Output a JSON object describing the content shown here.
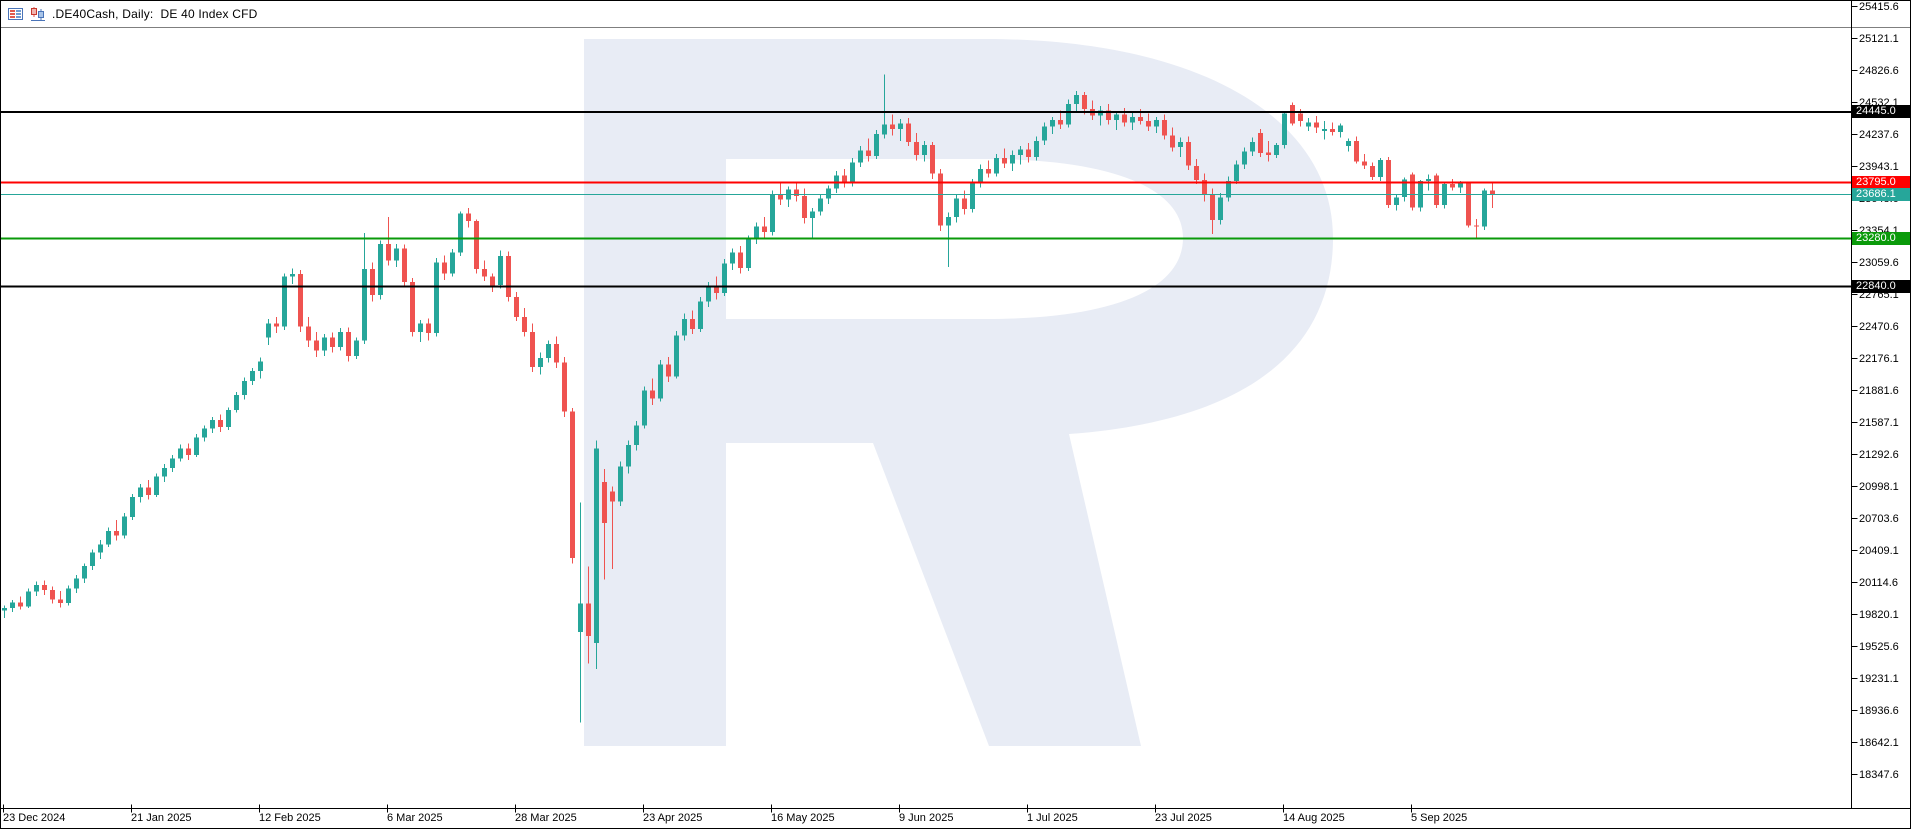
{
  "caption": {
    "title": ".DE40Cash, Daily:  DE 40 Index CFD",
    "icons": [
      "market-watch-icon",
      "candlestick-chart-icon"
    ]
  },
  "colors": {
    "background": "#ffffff",
    "frame": "#000000",
    "caption_separator": "#7f7f7f",
    "bull_candle": "#26a69a",
    "bear_candle": "#ef5350",
    "watermark": "#e8ecf5",
    "axis_text": "#000000",
    "badge_text": "#ffffff"
  },
  "chart_data": {
    "type": "candlestick",
    "symbol": ".DE40Cash",
    "timeframe": "Daily",
    "description": "DE 40 Index CFD",
    "price_axis": {
      "max": 25415.6,
      "step": 294.5,
      "ticks": [
        25415.6,
        25121.1,
        24826.6,
        24532.1,
        24237.6,
        23943.1,
        23648.6,
        23354.1,
        23059.6,
        22765.1,
        22470.6,
        22176.1,
        21881.6,
        21587.1,
        21292.6,
        20998.1,
        20703.6,
        20409.1,
        20114.6,
        19820.1,
        19525.6,
        19231.1,
        18936.6,
        18642.1,
        18347.6
      ]
    },
    "time_axis": {
      "labels": [
        "23 Dec 2024",
        "21 Jan 2025",
        "12 Feb 2025",
        "6 Mar 2025",
        "28 Mar 2025",
        "23 Apr 2025",
        "16 May 2025",
        "9 Jun 2025",
        "1 Jul 2025",
        "23 Jul 2025",
        "14 Aug 2025",
        "5 Sep 2025"
      ]
    },
    "levels": [
      {
        "name": "resistance-upper",
        "price": 24445.0,
        "label": "24445.0",
        "color": "#000000",
        "width": 2
      },
      {
        "name": "resistance-red",
        "price": 23795.0,
        "label": "23795.0",
        "color": "#ff0000",
        "width": 2
      },
      {
        "name": "current-price",
        "price": 23686.1,
        "label": "23686.1",
        "color": "#26a69a",
        "width": 1
      },
      {
        "name": "support-green",
        "price": 23280.0,
        "label": "23280.0",
        "color": "#0a9a0a",
        "width": 2
      },
      {
        "name": "support-lower",
        "price": 22840.0,
        "label": "22840.0",
        "color": "#000000",
        "width": 2
      }
    ],
    "current_price": 23686.1,
    "legend_position": "none",
    "grid": false,
    "bars": [
      [
        19855,
        19905,
        19790,
        19880
      ],
      [
        19880,
        19955,
        19845,
        19930
      ],
      [
        19930,
        19985,
        19865,
        19895
      ],
      [
        19895,
        20060,
        19880,
        20030
      ],
      [
        20030,
        20125,
        19990,
        20090
      ],
      [
        20090,
        20135,
        20000,
        20045
      ],
      [
        20045,
        20080,
        19920,
        19960
      ],
      [
        19960,
        20035,
        19885,
        19925
      ],
      [
        19925,
        20085,
        19905,
        20060
      ],
      [
        20060,
        20185,
        20020,
        20150
      ],
      [
        20150,
        20290,
        20110,
        20265
      ],
      [
        20265,
        20420,
        20230,
        20390
      ],
      [
        20390,
        20505,
        20330,
        20465
      ],
      [
        20465,
        20620,
        20440,
        20590
      ],
      [
        20590,
        20690,
        20500,
        20545
      ],
      [
        20545,
        20755,
        20520,
        20720
      ],
      [
        20720,
        20930,
        20690,
        20900
      ],
      [
        20900,
        21020,
        20850,
        20990
      ],
      [
        20990,
        21060,
        20880,
        20920
      ],
      [
        20920,
        21120,
        20900,
        21090
      ],
      [
        21090,
        21205,
        21040,
        21170
      ],
      [
        21170,
        21290,
        21130,
        21255
      ],
      [
        21255,
        21385,
        21230,
        21350
      ],
      [
        21350,
        21395,
        21240,
        21290
      ],
      [
        21290,
        21480,
        21270,
        21450
      ],
      [
        21450,
        21560,
        21410,
        21530
      ],
      [
        21530,
        21640,
        21490,
        21610
      ],
      [
        21610,
        21660,
        21500,
        21545
      ],
      [
        21545,
        21725,
        21520,
        21700
      ],
      [
        21700,
        21870,
        21680,
        21840
      ],
      [
        21840,
        22000,
        21800,
        21970
      ],
      [
        21970,
        22090,
        21930,
        22060
      ],
      [
        22060,
        22185,
        21990,
        22150
      ],
      [
        22370,
        22540,
        22300,
        22500
      ],
      [
        22500,
        22560,
        22410,
        22470
      ],
      [
        22470,
        22960,
        22440,
        22930
      ],
      [
        22930,
        23005,
        22860,
        22955
      ],
      [
        22955,
        22990,
        22420,
        22470
      ],
      [
        22470,
        22560,
        22280,
        22340
      ],
      [
        22340,
        22420,
        22190,
        22250
      ],
      [
        22250,
        22400,
        22200,
        22370
      ],
      [
        22370,
        22415,
        22230,
        22280
      ],
      [
        22280,
        22455,
        22250,
        22420
      ],
      [
        22420,
        22460,
        22150,
        22200
      ],
      [
        22200,
        22370,
        22170,
        22340
      ],
      [
        22340,
        23330,
        22310,
        23000
      ],
      [
        23000,
        23060,
        22700,
        22760
      ],
      [
        22760,
        23260,
        22720,
        23230
      ],
      [
        23230,
        23480,
        23030,
        23080
      ],
      [
        23080,
        23230,
        23020,
        23190
      ],
      [
        23190,
        23225,
        22830,
        22880
      ],
      [
        22880,
        22915,
        22380,
        22420
      ],
      [
        22420,
        22530,
        22330,
        22500
      ],
      [
        22500,
        22545,
        22340,
        22410
      ],
      [
        22410,
        23100,
        22380,
        23060
      ],
      [
        23060,
        23125,
        22900,
        22960
      ],
      [
        22960,
        23185,
        22930,
        23150
      ],
      [
        23150,
        23530,
        23120,
        23510
      ],
      [
        23510,
        23560,
        23380,
        23440
      ],
      [
        23440,
        23455,
        22960,
        23000
      ],
      [
        23000,
        23080,
        22890,
        22930
      ],
      [
        22930,
        22960,
        22790,
        22850
      ],
      [
        22850,
        23170,
        22820,
        23120
      ],
      [
        23120,
        23160,
        22700,
        22740
      ],
      [
        22740,
        22790,
        22520,
        22560
      ],
      [
        22560,
        22640,
        22380,
        22420
      ],
      [
        22420,
        22500,
        22050,
        22100
      ],
      [
        22100,
        22230,
        22030,
        22180
      ],
      [
        22180,
        22340,
        22140,
        22310
      ],
      [
        22310,
        22380,
        22090,
        22140
      ],
      [
        22140,
        22190,
        21640,
        21690
      ],
      [
        21690,
        21720,
        20290,
        20340
      ],
      [
        19660,
        20850,
        18826,
        19920
      ],
      [
        19920,
        20260,
        19370,
        19620
      ],
      [
        19560,
        21420,
        19320,
        21350
      ],
      [
        21040,
        21160,
        20140,
        20660
      ],
      [
        20950,
        21000,
        20240,
        20860
      ],
      [
        20860,
        21230,
        20820,
        21180
      ],
      [
        21180,
        21420,
        21120,
        21380
      ],
      [
        21380,
        21600,
        21330,
        21560
      ],
      [
        21560,
        21920,
        21530,
        21880
      ],
      [
        21880,
        21990,
        21750,
        21810
      ],
      [
        21810,
        22160,
        21780,
        22120
      ],
      [
        22120,
        22190,
        21960,
        22010
      ],
      [
        22010,
        22430,
        21990,
        22390
      ],
      [
        22390,
        22590,
        22340,
        22540
      ],
      [
        22540,
        22620,
        22400,
        22450
      ],
      [
        22450,
        22740,
        22420,
        22700
      ],
      [
        22700,
        22880,
        22650,
        22840
      ],
      [
        22840,
        22930,
        22720,
        22780
      ],
      [
        22780,
        23090,
        22750,
        23050
      ],
      [
        23050,
        23190,
        22990,
        23150
      ],
      [
        23150,
        23210,
        22960,
        23010
      ],
      [
        23010,
        23310,
        22980,
        23270
      ],
      [
        23270,
        23430,
        23230,
        23390
      ],
      [
        23390,
        23480,
        23290,
        23340
      ],
      [
        23340,
        23720,
        23310,
        23690
      ],
      [
        23690,
        23790,
        23590,
        23640
      ],
      [
        23640,
        23760,
        23570,
        23730
      ],
      [
        23730,
        23800,
        23620,
        23670
      ],
      [
        23670,
        23740,
        23420,
        23470
      ],
      [
        23470,
        23560,
        23290,
        23530
      ],
      [
        23530,
        23680,
        23490,
        23650
      ],
      [
        23650,
        23770,
        23600,
        23740
      ],
      [
        23740,
        23900,
        23700,
        23860
      ],
      [
        23860,
        23920,
        23750,
        23790
      ],
      [
        23790,
        24020,
        23760,
        23980
      ],
      [
        23980,
        24130,
        23940,
        24090
      ],
      [
        24090,
        24200,
        23990,
        24040
      ],
      [
        24040,
        24280,
        24010,
        24240
      ],
      [
        24240,
        24790,
        24200,
        24330
      ],
      [
        24330,
        24420,
        24230,
        24290
      ],
      [
        24290,
        24380,
        24180,
        24340
      ],
      [
        24340,
        24390,
        24130,
        24170
      ],
      [
        24170,
        24250,
        24000,
        24050
      ],
      [
        24050,
        24180,
        23990,
        24140
      ],
      [
        24140,
        24170,
        23830,
        23880
      ],
      [
        23880,
        23920,
        23350,
        23400
      ],
      [
        23400,
        23520,
        23020,
        23480
      ],
      [
        23480,
        23690,
        23430,
        23650
      ],
      [
        23650,
        23720,
        23500,
        23550
      ],
      [
        23550,
        23830,
        23520,
        23790
      ],
      [
        23790,
        23960,
        23750,
        23920
      ],
      [
        23920,
        24000,
        23840,
        23880
      ],
      [
        23880,
        24060,
        23850,
        24020
      ],
      [
        24020,
        24110,
        23930,
        23970
      ],
      [
        23970,
        24090,
        23900,
        24050
      ],
      [
        24050,
        24130,
        23960,
        24100
      ],
      [
        24100,
        24160,
        23980,
        24030
      ],
      [
        24030,
        24220,
        24000,
        24180
      ],
      [
        24180,
        24350,
        24140,
        24310
      ],
      [
        24310,
        24400,
        24240,
        24370
      ],
      [
        24370,
        24460,
        24290,
        24330
      ],
      [
        24330,
        24560,
        24300,
        24520
      ],
      [
        24520,
        24640,
        24450,
        24600
      ],
      [
        24600,
        24630,
        24420,
        24470
      ],
      [
        24470,
        24550,
        24370,
        24410
      ],
      [
        24410,
        24500,
        24320,
        24460
      ],
      [
        24460,
        24520,
        24330,
        24370
      ],
      [
        24370,
        24450,
        24280,
        24420
      ],
      [
        24420,
        24480,
        24310,
        24350
      ],
      [
        24350,
        24440,
        24280,
        24400
      ],
      [
        24400,
        24470,
        24330,
        24360
      ],
      [
        24360,
        24430,
        24270,
        24310
      ],
      [
        24310,
        24400,
        24250,
        24370
      ],
      [
        24370,
        24420,
        24190,
        24230
      ],
      [
        24230,
        24300,
        24080,
        24120
      ],
      [
        24120,
        24210,
        24030,
        24170
      ],
      [
        24170,
        24220,
        23910,
        23950
      ],
      [
        23950,
        24010,
        23780,
        23820
      ],
      [
        23820,
        23880,
        23620,
        23680
      ],
      [
        23680,
        23740,
        23320,
        23450
      ],
      [
        23450,
        23700,
        23410,
        23660
      ],
      [
        23660,
        23850,
        23620,
        23810
      ],
      [
        23810,
        24000,
        23780,
        23960
      ],
      [
        23960,
        24120,
        23920,
        24080
      ],
      [
        24080,
        24210,
        24040,
        24170
      ],
      [
        24250,
        24290,
        24030,
        24070
      ],
      [
        24070,
        24180,
        23990,
        24050
      ],
      [
        24050,
        24160,
        24020,
        24140
      ],
      [
        24140,
        24450,
        24110,
        24430
      ],
      [
        24510,
        24530,
        24320,
        24340
      ],
      [
        24430,
        24470,
        24310,
        24360
      ],
      [
        24310,
        24390,
        24270,
        24350
      ],
      [
        24350,
        24410,
        24250,
        24300
      ],
      [
        24270,
        24360,
        24190,
        24290
      ],
      [
        24290,
        24350,
        24230,
        24260
      ],
      [
        24260,
        24340,
        24210,
        24320
      ],
      [
        24130,
        24200,
        24080,
        24180
      ],
      [
        24180,
        24220,
        23970,
        23990
      ],
      [
        23990,
        24060,
        23920,
        23950
      ],
      [
        23950,
        23980,
        23820,
        23845
      ],
      [
        23845,
        24020,
        23810,
        24005
      ],
      [
        24005,
        24030,
        23560,
        23590
      ],
      [
        23590,
        23690,
        23540,
        23660
      ],
      [
        23660,
        23840,
        23620,
        23825
      ],
      [
        23870,
        23890,
        23540,
        23565
      ],
      [
        23565,
        23820,
        23530,
        23810
      ],
      [
        23810,
        23870,
        23720,
        23830
      ],
      [
        23860,
        23880,
        23560,
        23590
      ],
      [
        23590,
        23790,
        23555,
        23780
      ],
      [
        23780,
        23830,
        23720,
        23750
      ],
      [
        23750,
        23810,
        23700,
        23790
      ],
      [
        23790,
        23800,
        23380,
        23400
      ],
      [
        23400,
        23460,
        23280,
        23390
      ],
      [
        23390,
        23740,
        23360,
        23720
      ],
      [
        23720,
        23790,
        23560,
        23686.1
      ]
    ]
  }
}
